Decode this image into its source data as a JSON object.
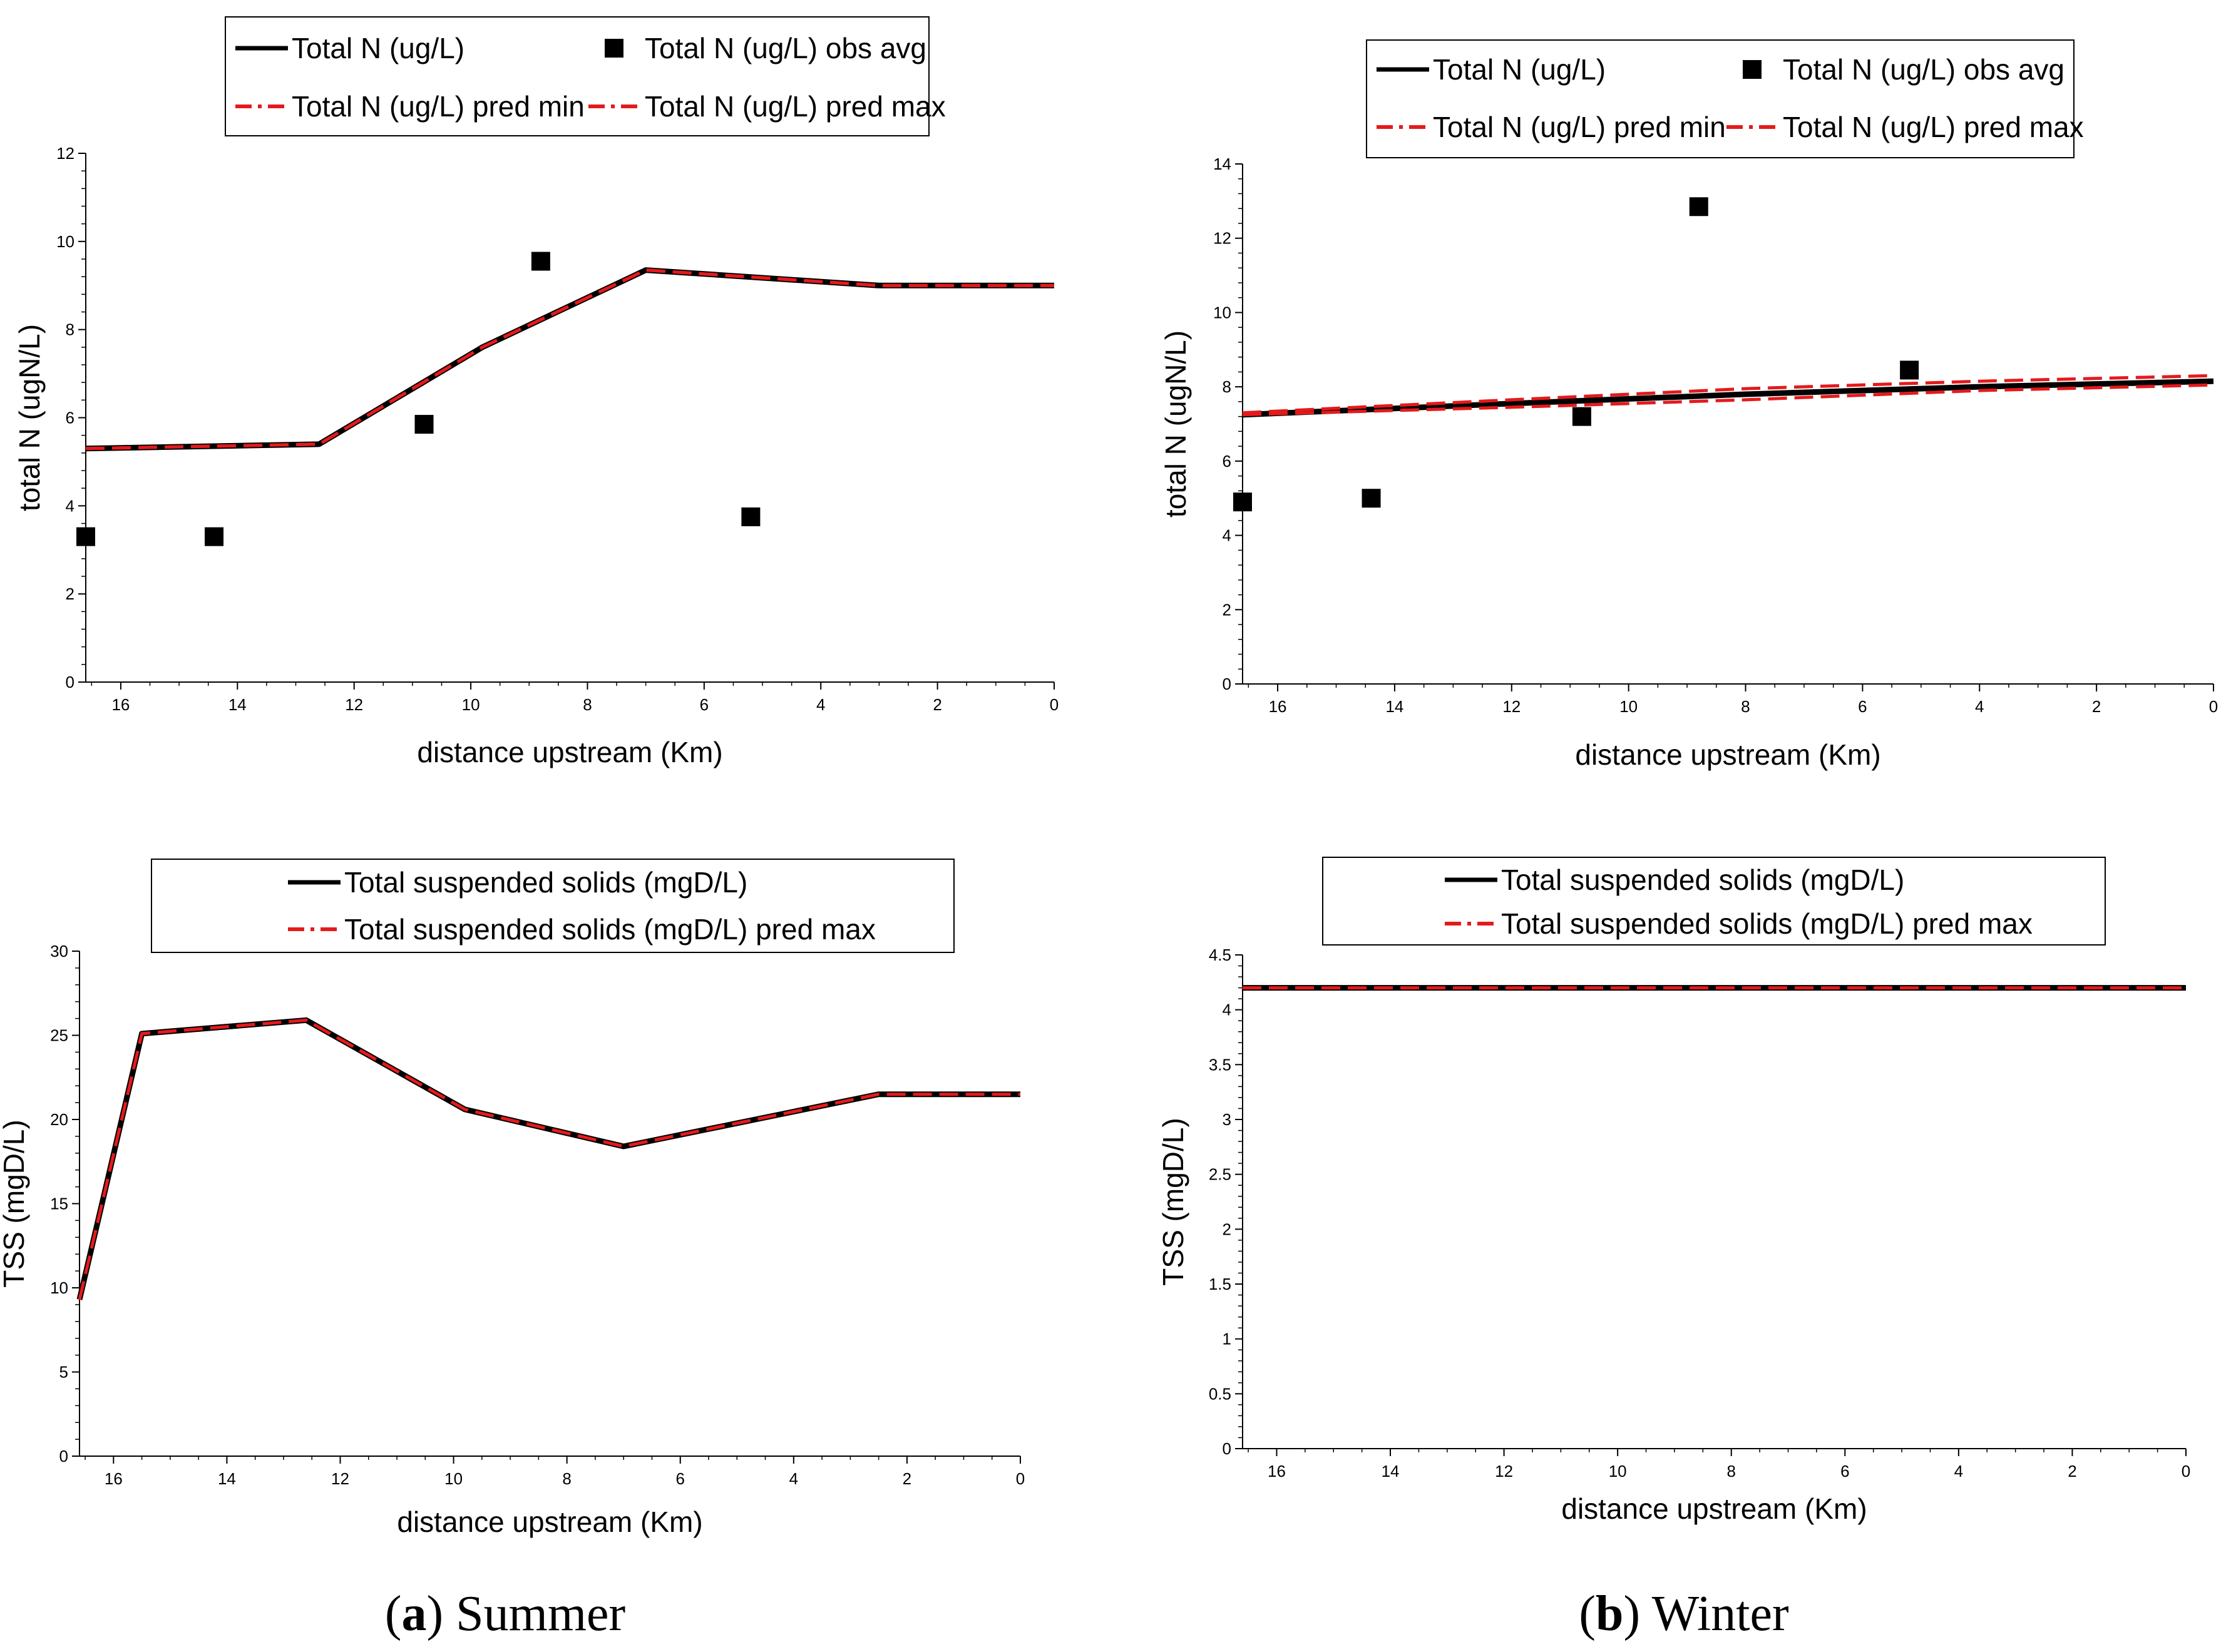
{
  "captions": {
    "left": {
      "letter": "a",
      "label": " Summer"
    },
    "right": {
      "letter": "b",
      "label": " Winter"
    }
  },
  "colors": {
    "line": "#000000",
    "pred": "#e41a1c",
    "marker": "#000000"
  },
  "chart_data": [
    {
      "id": "summer-tn",
      "type": "line",
      "xlabel": "distance upstream (Km)",
      "ylabel": "total N (ugN/L)",
      "xlim": [
        16.6,
        0
      ],
      "ylim": [
        0,
        12
      ],
      "xticks": [
        16,
        14,
        12,
        10,
        8,
        6,
        4,
        2,
        0
      ],
      "yticks": [
        0,
        2,
        4,
        6,
        8,
        10,
        12
      ],
      "legend": {
        "entries": [
          {
            "name": "Total N (ug/L)",
            "kind": "solid"
          },
          {
            "name": "Total N (ug/L) obs avg",
            "kind": "square"
          },
          {
            "name": "Total N (ug/L) pred min",
            "kind": "dashed"
          },
          {
            "name": "Total N (ug/L) pred max",
            "kind": "dashed"
          }
        ]
      },
      "series": [
        {
          "name": "Total N (ug/L)",
          "kind": "solid",
          "x": [
            16.6,
            12.6,
            9.8,
            7.0,
            3.0,
            0
          ],
          "y": [
            5.3,
            5.4,
            7.6,
            9.35,
            9.0,
            9.0
          ]
        },
        {
          "name": "Total N (ug/L) pred min",
          "kind": "dashed",
          "x": [
            16.6,
            12.6,
            9.8,
            7.0,
            3.0,
            0
          ],
          "y": [
            5.3,
            5.4,
            7.6,
            9.35,
            9.0,
            9.0
          ]
        },
        {
          "name": "Total N (ug/L) pred max",
          "kind": "dashed",
          "x": [
            16.6,
            12.6,
            9.8,
            7.0,
            3.0,
            0
          ],
          "y": [
            5.3,
            5.4,
            7.6,
            9.35,
            9.0,
            9.0
          ]
        },
        {
          "name": "Total N (ug/L) obs avg",
          "kind": "square",
          "x": [
            16.6,
            14.4,
            10.8,
            8.8,
            5.2
          ],
          "y": [
            3.3,
            3.3,
            5.85,
            9.55,
            3.75
          ]
        }
      ]
    },
    {
      "id": "winter-tn",
      "type": "line",
      "xlabel": "distance upstream (Km)",
      "ylabel": "total N (ugN/L)",
      "xlim": [
        16.6,
        0
      ],
      "ylim": [
        0,
        14
      ],
      "xticks": [
        16,
        14,
        12,
        10,
        8,
        6,
        4,
        2,
        0
      ],
      "yticks": [
        0,
        2,
        4,
        6,
        8,
        10,
        12,
        14
      ],
      "legend": {
        "entries": [
          {
            "name": "Total N (ug/L)",
            "kind": "solid"
          },
          {
            "name": "Total N (ug/L) obs avg",
            "kind": "square"
          },
          {
            "name": "Total N (ug/L) pred min",
            "kind": "dashed"
          },
          {
            "name": "Total N (ug/L) pred max",
            "kind": "dashed"
          }
        ]
      },
      "series": [
        {
          "name": "Total N (ug/L)",
          "kind": "solid",
          "x": [
            16.6,
            12.0,
            8.0,
            4.0,
            0
          ],
          "y": [
            7.25,
            7.55,
            7.8,
            8.0,
            8.15
          ]
        },
        {
          "name": "Total N (ug/L) pred min",
          "kind": "dashed",
          "x": [
            16.6,
            12.0,
            8.0,
            4.0,
            0
          ],
          "y": [
            7.25,
            7.45,
            7.65,
            7.9,
            8.05
          ]
        },
        {
          "name": "Total N (ug/L) pred max",
          "kind": "dashed",
          "x": [
            16.6,
            12.0,
            8.0,
            4.0,
            0
          ],
          "y": [
            7.3,
            7.65,
            7.95,
            8.15,
            8.3
          ]
        },
        {
          "name": "Total N (ug/L) obs avg",
          "kind": "square",
          "x": [
            16.6,
            14.4,
            10.8,
            8.8,
            5.2
          ],
          "y": [
            4.9,
            5.0,
            7.2,
            12.85,
            8.45
          ]
        }
      ]
    },
    {
      "id": "summer-tss",
      "type": "line",
      "xlabel": "distance upstream (Km)",
      "ylabel": "TSS (mgD/L)",
      "xlim": [
        16.6,
        0
      ],
      "ylim": [
        0,
        30
      ],
      "xticks": [
        16,
        14,
        12,
        10,
        8,
        6,
        4,
        2,
        0
      ],
      "yticks": [
        0,
        5,
        10,
        15,
        20,
        25,
        30
      ],
      "legend": {
        "entries": [
          {
            "name": "Total suspended solids (mgD/L)",
            "kind": "solid"
          },
          {
            "name": "Total suspended solids (mgD/L) pred max",
            "kind": "dashed"
          }
        ]
      },
      "series": [
        {
          "name": "Total suspended solids (mgD/L)",
          "kind": "solid",
          "x": [
            16.6,
            15.5,
            12.6,
            9.8,
            7.0,
            2.5,
            0
          ],
          "y": [
            9.3,
            25.1,
            25.9,
            20.6,
            18.4,
            21.5,
            21.5
          ]
        },
        {
          "name": "Total suspended solids (mgD/L) pred max",
          "kind": "dashed",
          "x": [
            16.6,
            15.5,
            12.6,
            9.8,
            7.0,
            2.5,
            0
          ],
          "y": [
            9.3,
            25.1,
            25.9,
            20.6,
            18.4,
            21.5,
            21.5
          ]
        }
      ]
    },
    {
      "id": "winter-tss",
      "type": "line",
      "xlabel": "distance upstream (Km)",
      "ylabel": "TSS (mgD/L)",
      "xlim": [
        16.6,
        0
      ],
      "ylim": [
        0,
        4.5
      ],
      "xticks": [
        16,
        14,
        12,
        10,
        8,
        6,
        4,
        2,
        0
      ],
      "yticks": [
        0,
        0.5,
        1,
        1.5,
        2,
        2.5,
        3,
        3.5,
        4,
        4.5
      ],
      "legend": {
        "entries": [
          {
            "name": "Total suspended solids (mgD/L)",
            "kind": "solid"
          },
          {
            "name": "Total suspended solids (mgD/L) pred max",
            "kind": "dashed"
          }
        ]
      },
      "series": [
        {
          "name": "Total suspended solids (mgD/L)",
          "kind": "solid",
          "x": [
            16.6,
            0
          ],
          "y": [
            4.2,
            4.2
          ]
        },
        {
          "name": "Total suspended solids (mgD/L) pred max",
          "kind": "dashed",
          "x": [
            16.6,
            0
          ],
          "y": [
            4.2,
            4.2
          ]
        }
      ]
    }
  ]
}
